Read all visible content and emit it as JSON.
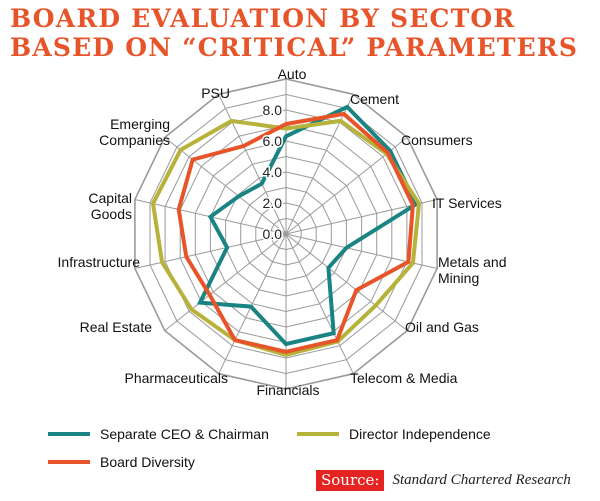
{
  "title": {
    "line1": "BOARD EVALUATION BY SECTOR",
    "line2": "BASED ON “CRITICAL” PARAMETERS"
  },
  "source": {
    "tag": "Source:",
    "text": "Standard Chartered Research"
  },
  "colors": {
    "separate_ceo": "#1a8383",
    "director_independence": "#b6b23a",
    "board_diversity": "#e8542a",
    "grid": "#9a9a9a",
    "title": "#e8542a"
  },
  "chart_data": {
    "type": "radar",
    "title": "BOARD EVALUATION BY SECTOR BASED ON “CRITICAL” PARAMETERS",
    "categories": [
      "Auto",
      "Cement",
      "Consumers",
      "IT Services",
      "Metals and Mining",
      "Oil and Gas",
      "Telecom & Media",
      "Financials",
      "Pharmaceuticals",
      "Real Estate",
      "Infrastructure",
      "Capital Goods",
      "Emerging Companies",
      "PSU"
    ],
    "ticks": [
      "0.0",
      "2.0",
      "4.0",
      "6.0",
      "8.0"
    ],
    "rmax": 10,
    "series": [
      {
        "name": "Separate CEO & Chairman",
        "color": "#1a8383",
        "values": [
          6.3,
          9.1,
          8.6,
          8.6,
          4.0,
          3.5,
          7.1,
          7.1,
          5.2,
          7.1,
          3.9,
          5.0,
          3.9,
          3.6
        ]
      },
      {
        "name": "Director Independence",
        "color": "#b6b23a",
        "values": [
          6.8,
          8.1,
          8.3,
          8.8,
          8.4,
          7.4,
          7.7,
          7.8,
          7.6,
          7.8,
          8.2,
          8.8,
          8.7,
          8.1
        ]
      },
      {
        "name": "Board Diversity",
        "color": "#e8542a",
        "values": [
          7.1,
          8.6,
          8.4,
          8.4,
          8.1,
          5.8,
          7.6,
          7.6,
          7.6,
          6.3,
          6.6,
          7.1,
          7.7,
          6.3
        ]
      }
    ],
    "legend_position": "bottom",
    "grid": true
  }
}
